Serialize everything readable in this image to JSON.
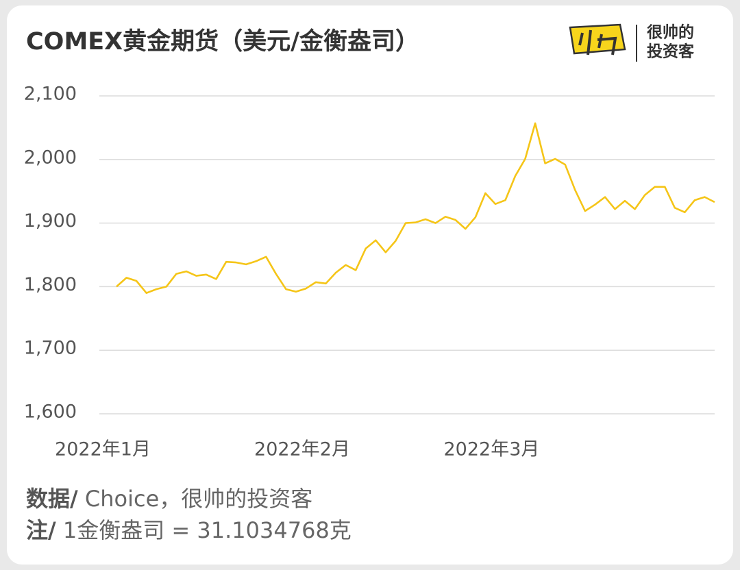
{
  "chart_data": {
    "type": "line",
    "title": "COMEX黄金期货（美元/金衡盎司）",
    "categories": [
      "2022年1月",
      null,
      null,
      null,
      null,
      null,
      null,
      null,
      null,
      null,
      null,
      null,
      null,
      null,
      null,
      null,
      null,
      null,
      null,
      null,
      "2022年2月",
      null,
      null,
      null,
      null,
      null,
      null,
      null,
      null,
      null,
      null,
      null,
      null,
      null,
      null,
      null,
      null,
      null,
      null,
      "2022年3月",
      null,
      null,
      null,
      null,
      null,
      null,
      null,
      null,
      null,
      null,
      null,
      null,
      null,
      null,
      null,
      null,
      null,
      null,
      null,
      null,
      null
    ],
    "series": [
      {
        "color": "#f5c518",
        "values": [
          1800,
          1814,
          1809,
          1790,
          1796,
          1800,
          1820,
          1824,
          1817,
          1819,
          1812,
          1839,
          1838,
          1835,
          1840,
          1847,
          1820,
          1796,
          1792,
          1797,
          1807,
          1805,
          1822,
          1834,
          1826,
          1860,
          1873,
          1854,
          1872,
          1900,
          1901,
          1906,
          1900,
          1910,
          1905,
          1891,
          1909,
          1947,
          1930,
          1936,
          1974,
          2001,
          2057,
          1994,
          2001,
          1992,
          1952,
          1919,
          1929,
          1941,
          1922,
          1935,
          1922,
          1944,
          1957,
          1957,
          1924,
          1917,
          1936,
          1941,
          1933
        ]
      }
    ],
    "ylim": [
      1600,
      2100
    ],
    "yticks": [
      {
        "value": 1600,
        "label": "1,600"
      },
      {
        "value": 1700,
        "label": "1,700"
      },
      {
        "value": 1800,
        "label": "1,800"
      },
      {
        "value": 1900,
        "label": "1,900"
      },
      {
        "value": 2000,
        "label": "2,000"
      },
      {
        "value": 2100,
        "label": "2,100"
      }
    ],
    "grid": true
  },
  "brand": {
    "line1": "很帅的",
    "line2": "投资客"
  },
  "notes": {
    "source_label": "数据/",
    "source_text": " Choice，很帅的投资客",
    "note_label": "注/",
    "note_text": " 1金衡盎司 = 31.1034768克"
  }
}
